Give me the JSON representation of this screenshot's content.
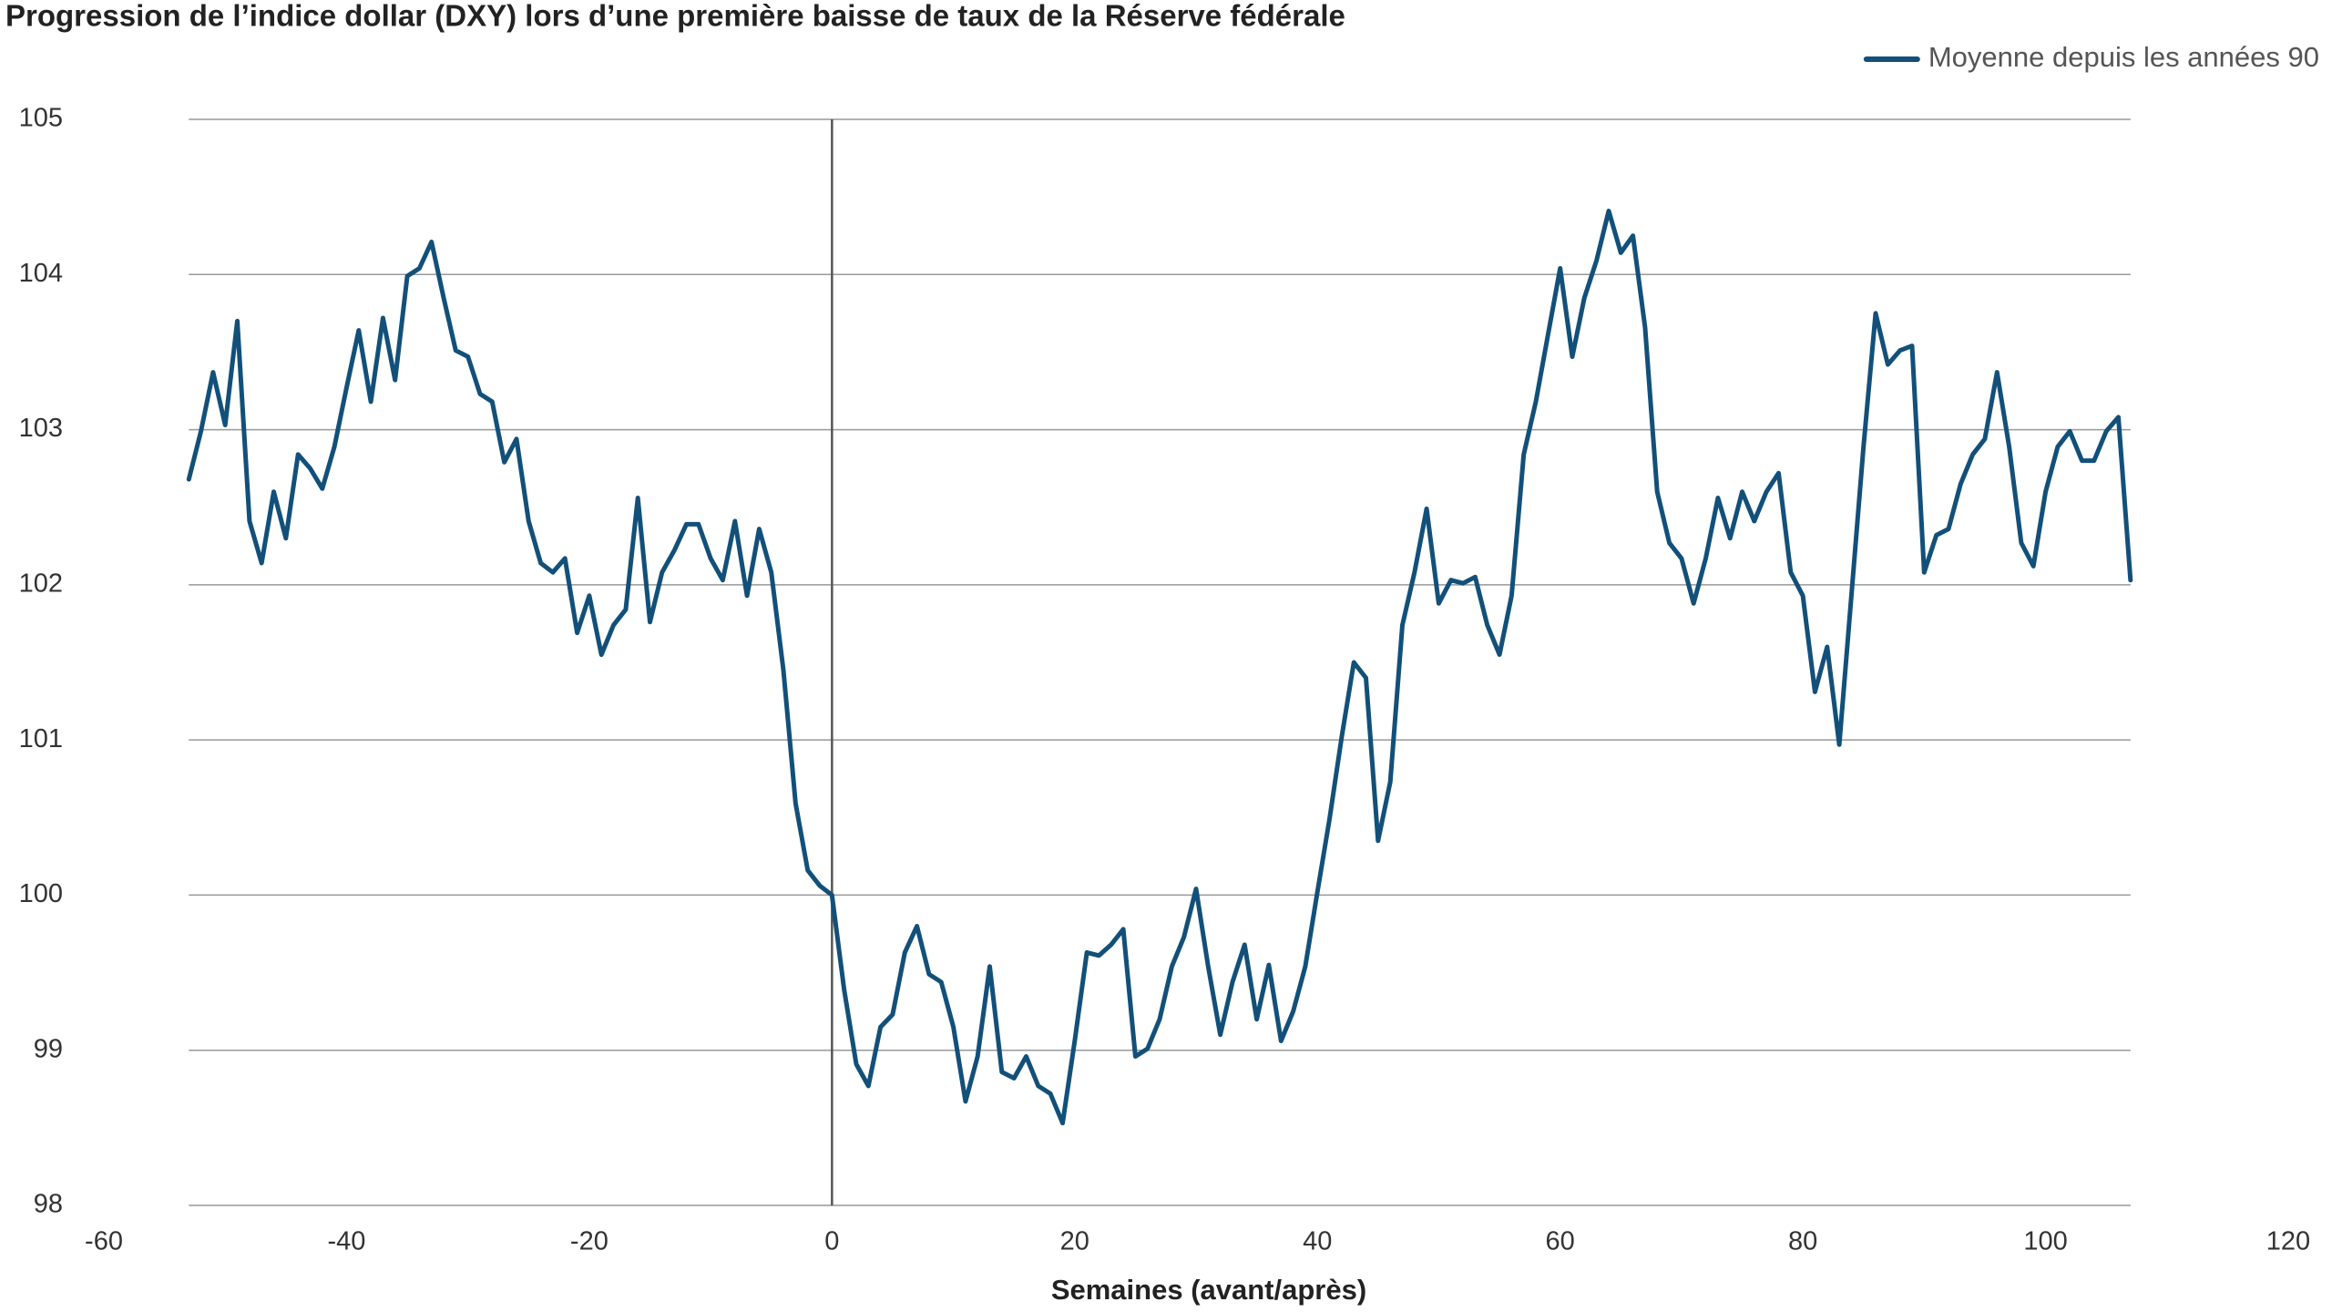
{
  "chart_data": {
    "type": "line",
    "title": "Progression de l’indice dollar (DXY) lors d’une première baisse de taux de la Réserve fédérale",
    "x_label": "Semaines (avant/après)",
    "x": [
      -53,
      -52,
      -51,
      -50,
      -49,
      -48,
      -47,
      -46,
      -45,
      -44,
      -43,
      -42,
      -41,
      -40,
      -39,
      -38,
      -37,
      -36,
      -35,
      -34,
      -33,
      -32,
      -31,
      -30,
      -29,
      -28,
      -27,
      -26,
      -25,
      -24,
      -23,
      -22,
      -21,
      -20,
      -19,
      -18,
      -17,
      -16,
      -15,
      -14,
      -13,
      -12,
      -11,
      -10,
      -9,
      -8,
      -7,
      -6,
      -5,
      -4,
      -3,
      -2,
      -1,
      0,
      1,
      2,
      3,
      4,
      5,
      6,
      7,
      8,
      9,
      10,
      11,
      12,
      13,
      14,
      15,
      16,
      17,
      18,
      19,
      20,
      21,
      22,
      23,
      24,
      25,
      26,
      27,
      28,
      29,
      30,
      31,
      32,
      33,
      34,
      35,
      36,
      37,
      38,
      39,
      40,
      41,
      42,
      43,
      44,
      45,
      46,
      47,
      48,
      49,
      50,
      51,
      52,
      53,
      54,
      55,
      56,
      57,
      58,
      59,
      60,
      61,
      62,
      63,
      64,
      65,
      66,
      67,
      68,
      69,
      70,
      71,
      72,
      73,
      74,
      75,
      76,
      77,
      78,
      79,
      80,
      81,
      82,
      83,
      84,
      85,
      86,
      87,
      88,
      89,
      90,
      91,
      92,
      93,
      94,
      95,
      96,
      97,
      98,
      99,
      100,
      101,
      102,
      103,
      104,
      105,
      106,
      107
    ],
    "series": [
      {
        "name": "Moyenne depuis les années 90",
        "color": "#12507a",
        "values": [
          102.68,
          102.99,
          103.37,
          103.03,
          103.7,
          102.41,
          102.14,
          102.6,
          102.3,
          102.84,
          102.75,
          102.62,
          102.89,
          103.27,
          103.64,
          103.18,
          103.72,
          103.32,
          103.99,
          104.04,
          104.21,
          103.85,
          103.51,
          103.47,
          103.23,
          103.18,
          102.79,
          102.94,
          102.41,
          102.14,
          102.08,
          102.17,
          101.69,
          101.93,
          101.55,
          101.74,
          101.84,
          102.56,
          101.76,
          102.08,
          102.22,
          102.39,
          102.39,
          102.17,
          102.03,
          102.41,
          101.93,
          102.36,
          102.08,
          101.45,
          100.59,
          100.16,
          100.06,
          100,
          99.39,
          98.91,
          98.77,
          99.15,
          99.23,
          99.63,
          99.8,
          99.49,
          99.44,
          99.15,
          98.67,
          98.96,
          99.54,
          98.86,
          98.82,
          98.96,
          98.77,
          98.72,
          98.53,
          99.06,
          99.63,
          99.61,
          99.68,
          99.78,
          98.96,
          99.01,
          99.2,
          99.54,
          99.73,
          100.04,
          99.54,
          99.1,
          99.44,
          99.68,
          99.2,
          99.55,
          99.06,
          99.25,
          99.54,
          100.02,
          100.49,
          101.02,
          101.5,
          101.4,
          100.35,
          100.73,
          101.74,
          102.08,
          102.49,
          101.88,
          102.03,
          102.01,
          102.05,
          101.74,
          101.55,
          101.93,
          102.84,
          103.18,
          103.61,
          104.04,
          103.47,
          103.85,
          104.09,
          104.41,
          104.14,
          104.25,
          103.66,
          102.6,
          102.27,
          102.17,
          101.88,
          102.17,
          102.56,
          102.3,
          102.6,
          102.41,
          102.6,
          102.72,
          102.08,
          101.93,
          101.31,
          101.6,
          100.97,
          101.93,
          102.89,
          103.75,
          103.42,
          103.51,
          103.54,
          102.08,
          102.32,
          102.36,
          102.65,
          102.84,
          102.94,
          103.37,
          102.89,
          102.27,
          102.12,
          102.6,
          102.89,
          102.99,
          102.8,
          102.8,
          102.99,
          103.08,
          102.03
        ]
      }
    ],
    "xlim": [
      -60,
      120
    ],
    "xticks": [
      -60,
      -40,
      -20,
      0,
      20,
      40,
      60,
      80,
      100,
      120
    ],
    "ylim": [
      98,
      105
    ],
    "yticks": [
      98,
      99,
      100,
      101,
      102,
      103,
      104,
      105
    ],
    "grid": true,
    "legend": "top-right"
  }
}
